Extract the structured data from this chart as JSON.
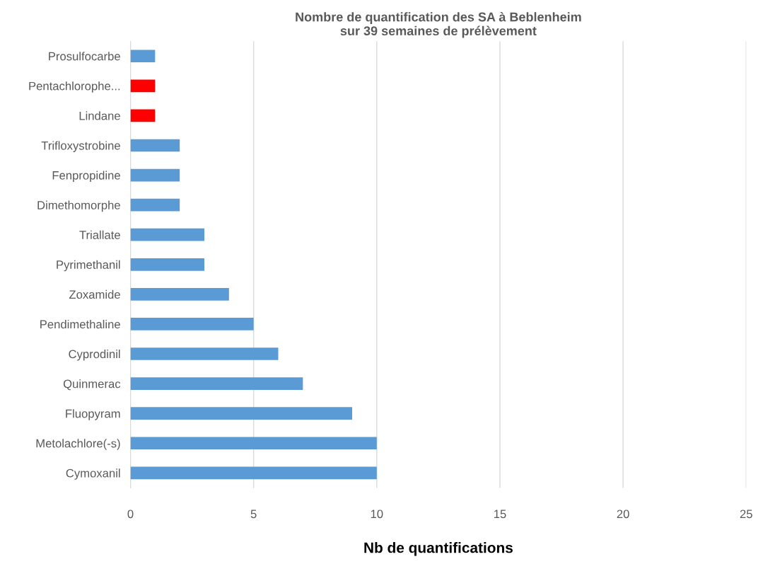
{
  "chart_data": {
    "type": "bar",
    "orientation": "horizontal",
    "title": "Nombre de quantification des SA à Beblenheim\nsur 39 semaines de prélèvement",
    "xlabel": "Nb de quantifications",
    "categories": [
      "Prosulfocarbe",
      "Pentachlorophe...",
      "Lindane",
      "Trifloxystrobine",
      "Fenpropidine",
      "Dimethomorphe",
      "Triallate",
      "Pyrimethanil",
      "Zoxamide",
      "Pendimethaline",
      "Cyprodinil",
      "Quinmerac",
      "Fluopyram",
      "Metolachlore(-s)",
      "Cymoxanil"
    ],
    "values": [
      1,
      1,
      1,
      2,
      2,
      2,
      3,
      3,
      4,
      5,
      6,
      7,
      9,
      10,
      10
    ],
    "colors": [
      "#5b9bd5",
      "#ff0000",
      "#ff0000",
      "#5b9bd5",
      "#5b9bd5",
      "#5b9bd5",
      "#5b9bd5",
      "#5b9bd5",
      "#5b9bd5",
      "#5b9bd5",
      "#5b9bd5",
      "#5b9bd5",
      "#5b9bd5",
      "#5b9bd5",
      "#5b9bd5"
    ],
    "xlim": [
      0,
      25
    ],
    "xticks": [
      0,
      5,
      10,
      15,
      20,
      25
    ],
    "grid": "x",
    "legend": false
  }
}
